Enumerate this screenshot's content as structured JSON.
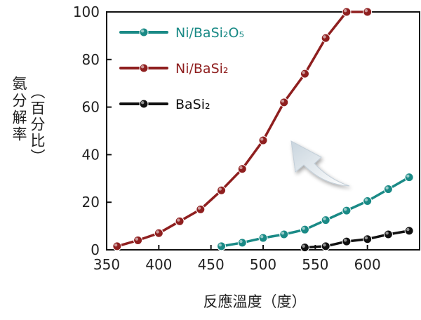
{
  "chart_data": {
    "type": "line",
    "title": "",
    "xlabel": "反應溫度（度）",
    "ylabel": "氨分解率（百分比）",
    "xlim": [
      350,
      650
    ],
    "ylim": [
      0,
      100
    ],
    "xticks": [
      "350",
      "400",
      "450",
      "500",
      "550",
      "600"
    ],
    "yticks": [
      "0",
      "20",
      "40",
      "60",
      "80",
      "100"
    ],
    "grid": false,
    "legend_position": "top-left",
    "annotation": "arrow pointing up-left toward the Ni/BaSi₂ curve",
    "series": [
      {
        "name": "Ni/BaSi₂O₅",
        "color": "#1a8a86",
        "x": [
          460,
          480,
          500,
          520,
          540,
          560,
          580,
          600,
          620,
          640
        ],
        "y": [
          1.5,
          3,
          5,
          6.5,
          8.5,
          12.5,
          16.5,
          20.5,
          25.5,
          30.5
        ]
      },
      {
        "name": "Ni/BaSi₂",
        "color": "#8f1f1f",
        "x": [
          360,
          380,
          400,
          420,
          440,
          460,
          480,
          500,
          520,
          540,
          560,
          580,
          600
        ],
        "y": [
          1.5,
          4,
          7,
          12,
          17,
          25,
          34,
          46,
          62,
          74,
          89,
          100,
          100
        ]
      },
      {
        "name": "BaSi₂",
        "color": "#111111",
        "x": [
          540,
          560,
          580,
          600,
          620,
          640
        ],
        "y": [
          1,
          1.5,
          3.5,
          4.5,
          6.5,
          8
        ]
      }
    ]
  }
}
